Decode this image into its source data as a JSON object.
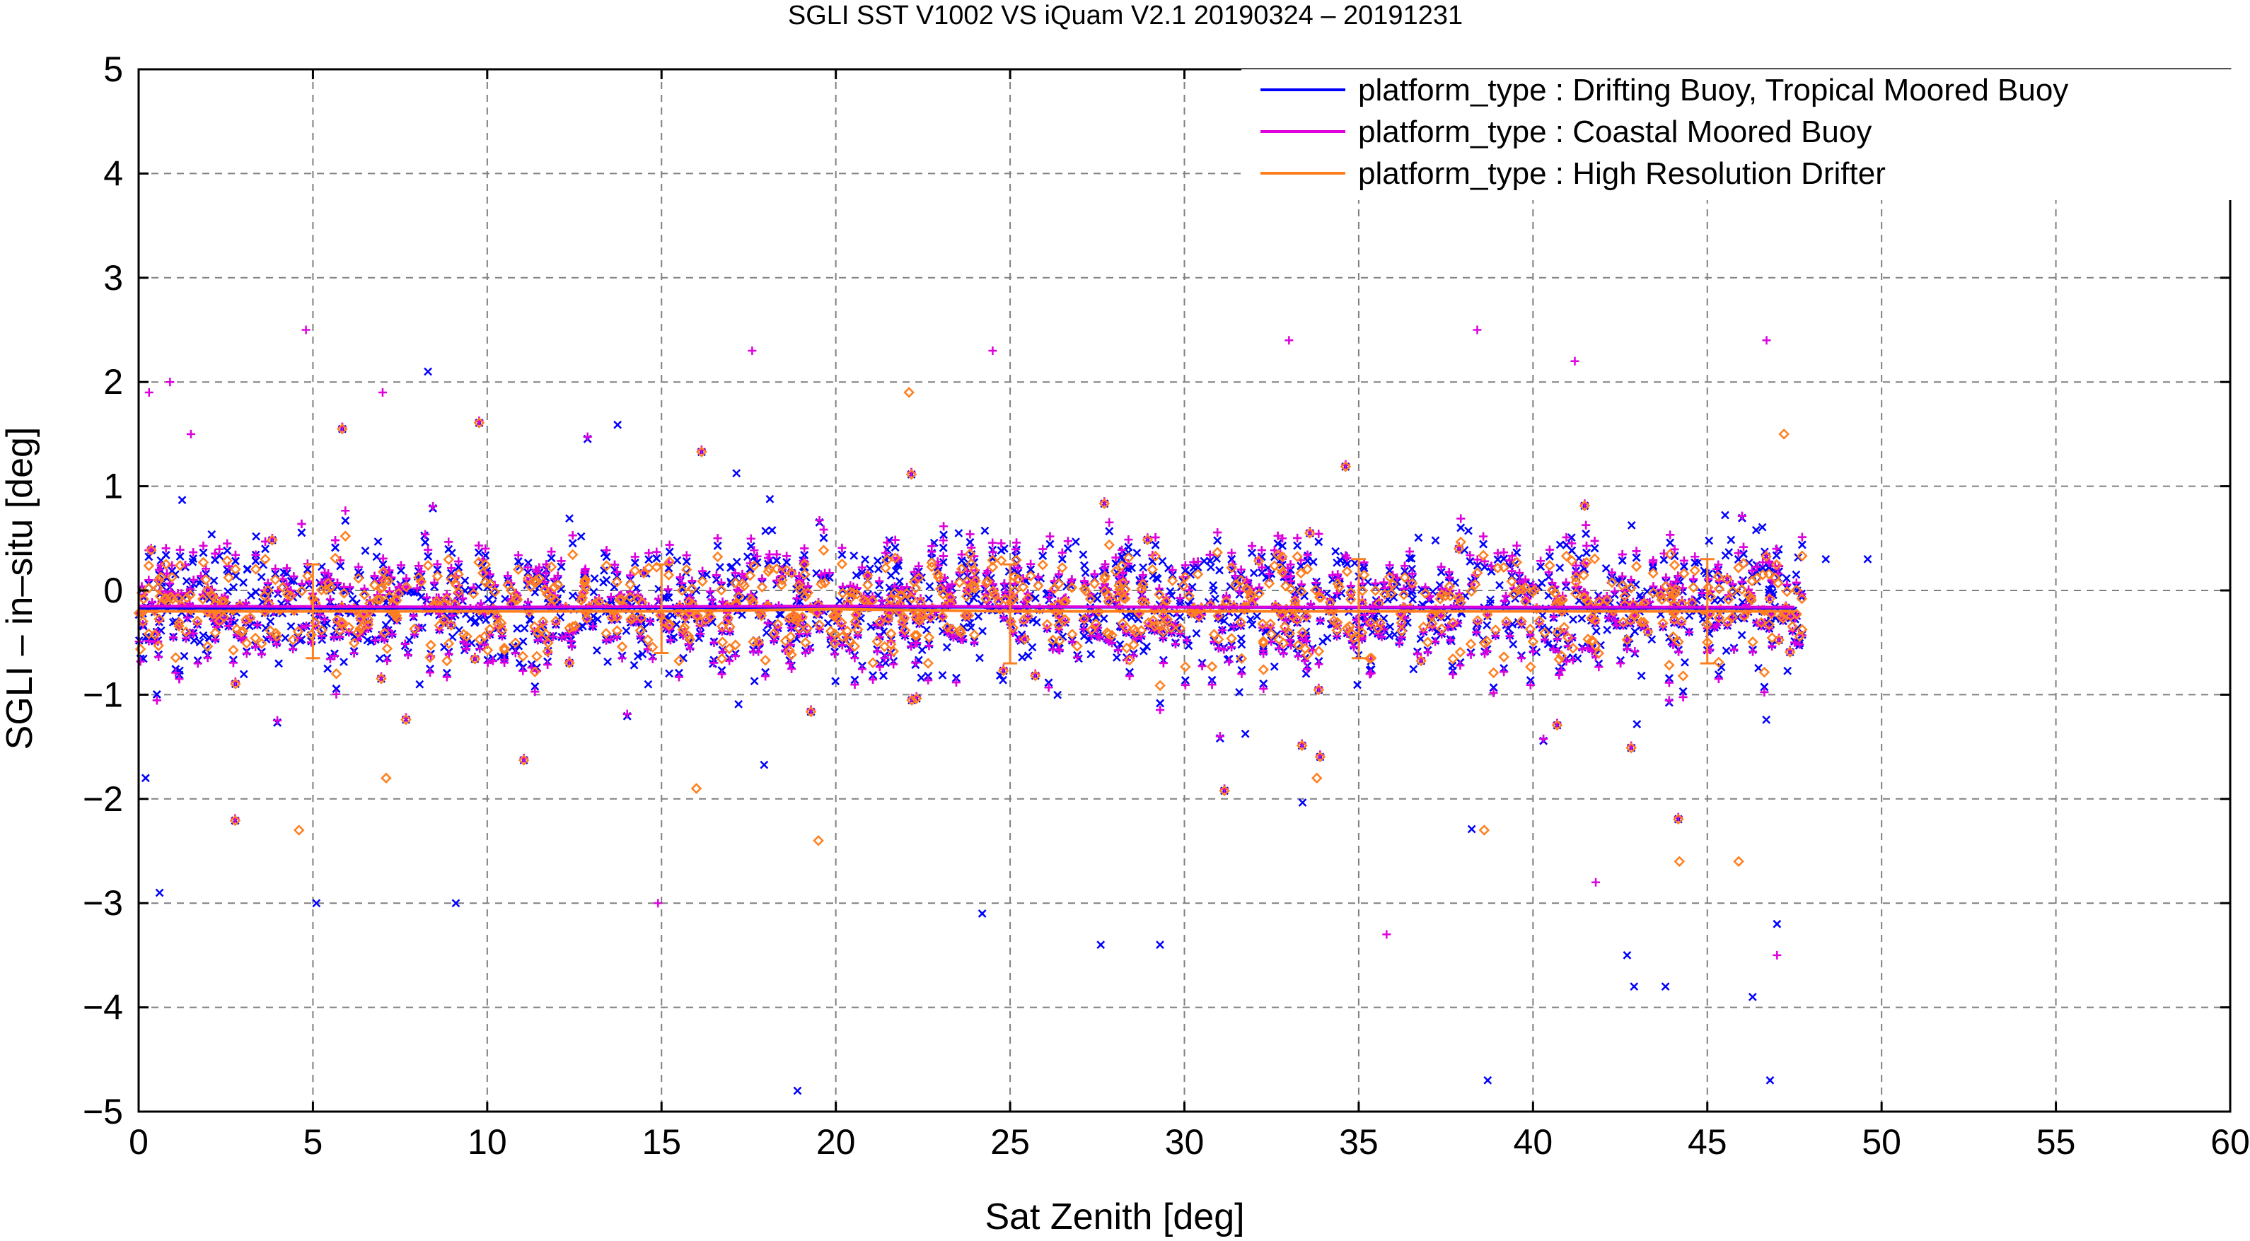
{
  "chart_data": {
    "type": "scatter",
    "title": "SGLI SST V1002 VS iQuam V2.1 20190324 – 20191231",
    "xlabel": "Sat Zenith [deg]",
    "ylabel": "SGLI – in–situ [deg]",
    "xlim": [
      0,
      60
    ],
    "ylim": [
      -5,
      5
    ],
    "xticks": [
      "0",
      "5",
      "10",
      "15",
      "20",
      "25",
      "30",
      "35",
      "40",
      "45",
      "50",
      "55",
      "60"
    ],
    "yticks": [
      "−5",
      "−4",
      "−3",
      "−2",
      "−1",
      "0",
      "1",
      "2",
      "3",
      "4",
      "5"
    ],
    "grid": true,
    "legend_position": "top-right",
    "series": [
      {
        "name": "platform_type : Drifting Buoy, Tropical Moored Buoy",
        "color": "#0000ff",
        "marker": "x",
        "x_range": [
          0,
          47.8
        ],
        "bulk_center": -0.15,
        "bulk_spread": 0.55,
        "mean_line": [
          [
            0,
            -0.17
          ],
          [
            10,
            -0.17
          ],
          [
            20,
            -0.16
          ],
          [
            30,
            -0.16
          ],
          [
            40,
            -0.17
          ],
          [
            47.5,
            -0.17
          ]
        ],
        "notable_outliers": [
          [
            8.3,
            2.1
          ],
          [
            0.2,
            -1.8
          ],
          [
            0.6,
            -2.9
          ],
          [
            5.1,
            -3.0
          ],
          [
            9.1,
            -3.0
          ],
          [
            18.9,
            -4.8
          ],
          [
            24.2,
            -3.1
          ],
          [
            27.6,
            -3.4
          ],
          [
            29.3,
            -3.4
          ],
          [
            38.7,
            -4.7
          ],
          [
            42.7,
            -3.5
          ],
          [
            42.9,
            -3.8
          ],
          [
            43.8,
            -3.8
          ],
          [
            46.3,
            -3.9
          ],
          [
            46.8,
            -4.7
          ],
          [
            47.0,
            -3.2
          ],
          [
            48.4,
            0.3
          ],
          [
            49.6,
            0.3
          ]
        ]
      },
      {
        "name": "platform_type : Coastal Moored Buoy",
        "color": "#dd00dd",
        "marker": "+",
        "x_range": [
          0,
          47.8
        ],
        "bulk_center": -0.13,
        "bulk_spread": 0.6,
        "mean_line": [
          [
            0,
            -0.15
          ],
          [
            10,
            -0.16
          ],
          [
            20,
            -0.15
          ],
          [
            30,
            -0.16
          ],
          [
            40,
            -0.16
          ],
          [
            47.5,
            -0.16
          ]
        ],
        "notable_outliers": [
          [
            4.8,
            2.5
          ],
          [
            0.3,
            1.9
          ],
          [
            0.9,
            2.0
          ],
          [
            1.5,
            1.5
          ],
          [
            7.0,
            1.9
          ],
          [
            17.6,
            2.3
          ],
          [
            24.5,
            2.3
          ],
          [
            33.0,
            2.4
          ],
          [
            38.4,
            2.5
          ],
          [
            41.2,
            2.2
          ],
          [
            46.7,
            2.4
          ],
          [
            14.9,
            -3.0
          ],
          [
            35.8,
            -3.3
          ],
          [
            47.0,
            -3.5
          ],
          [
            41.8,
            -2.8
          ]
        ]
      },
      {
        "name": "platform_type : High Resolution Drifter",
        "color": "#ff7f1f",
        "marker": "diamond",
        "x_range": [
          0,
          47.8
        ],
        "bulk_center": -0.15,
        "bulk_spread": 0.45,
        "mean_line": [
          [
            0,
            -0.2
          ],
          [
            5,
            -0.2
          ],
          [
            10,
            -0.2
          ],
          [
            15,
            -0.2
          ],
          [
            20,
            -0.18
          ],
          [
            25,
            -0.2
          ],
          [
            30,
            -0.2
          ],
          [
            35,
            -0.2
          ],
          [
            40,
            -0.2
          ],
          [
            45,
            -0.2
          ],
          [
            47.5,
            -0.2
          ]
        ],
        "error_bars": [
          {
            "x": 5,
            "low": -0.65,
            "high": 0.25
          },
          {
            "x": 15,
            "low": -0.6,
            "high": 0.25
          },
          {
            "x": 25,
            "low": -0.7,
            "high": 0.25
          },
          {
            "x": 35,
            "low": -0.65,
            "high": 0.3
          },
          {
            "x": 45,
            "low": -0.7,
            "high": 0.3
          }
        ],
        "notable_outliers": [
          [
            4.6,
            -2.3
          ],
          [
            7.1,
            -1.8
          ],
          [
            19.5,
            -2.4
          ],
          [
            16.0,
            -1.9
          ],
          [
            33.8,
            -1.8
          ],
          [
            38.6,
            -2.3
          ],
          [
            44.2,
            -2.6
          ],
          [
            45.9,
            -2.6
          ],
          [
            47.2,
            1.5
          ],
          [
            22.1,
            1.9
          ]
        ]
      }
    ]
  }
}
